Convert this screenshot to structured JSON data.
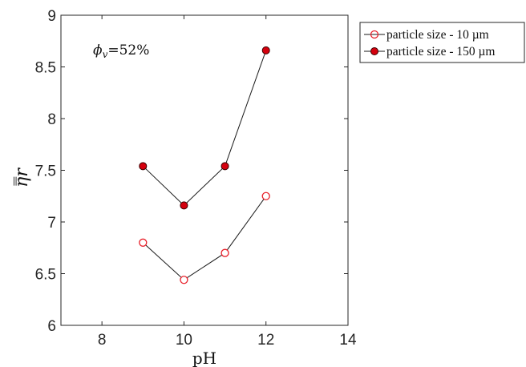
{
  "chart_data": {
    "type": "line",
    "xlabel": "pH",
    "ylabel": "η̿r",
    "xlim": [
      7,
      14
    ],
    "ylim": [
      6,
      9
    ],
    "x_ticks": [
      8,
      10,
      12,
      14
    ],
    "y_ticks": [
      "6",
      "6.5",
      "7",
      "7.5",
      "8",
      "8.5",
      "9"
    ],
    "grid": false,
    "legend_position": "outside-right",
    "annotation": "ϕv=52%",
    "annotation_parts": {
      "symbol": "ϕ",
      "subscript": "v",
      "rest": "=52%"
    },
    "x": [
      9,
      10,
      11,
      12
    ],
    "series": [
      {
        "name": "particle size - 10 µm",
        "marker": "open-circle",
        "values": [
          6.8,
          6.44,
          6.7,
          7.25
        ],
        "marker_color": "#e8202a",
        "line_color": "#1a1a1a"
      },
      {
        "name": "particle size - 150 µm",
        "marker": "filled-circle",
        "values": [
          7.54,
          7.16,
          7.54,
          8.66
        ],
        "marker_color": "#d4000e",
        "line_color": "#1a1a1a"
      }
    ]
  }
}
